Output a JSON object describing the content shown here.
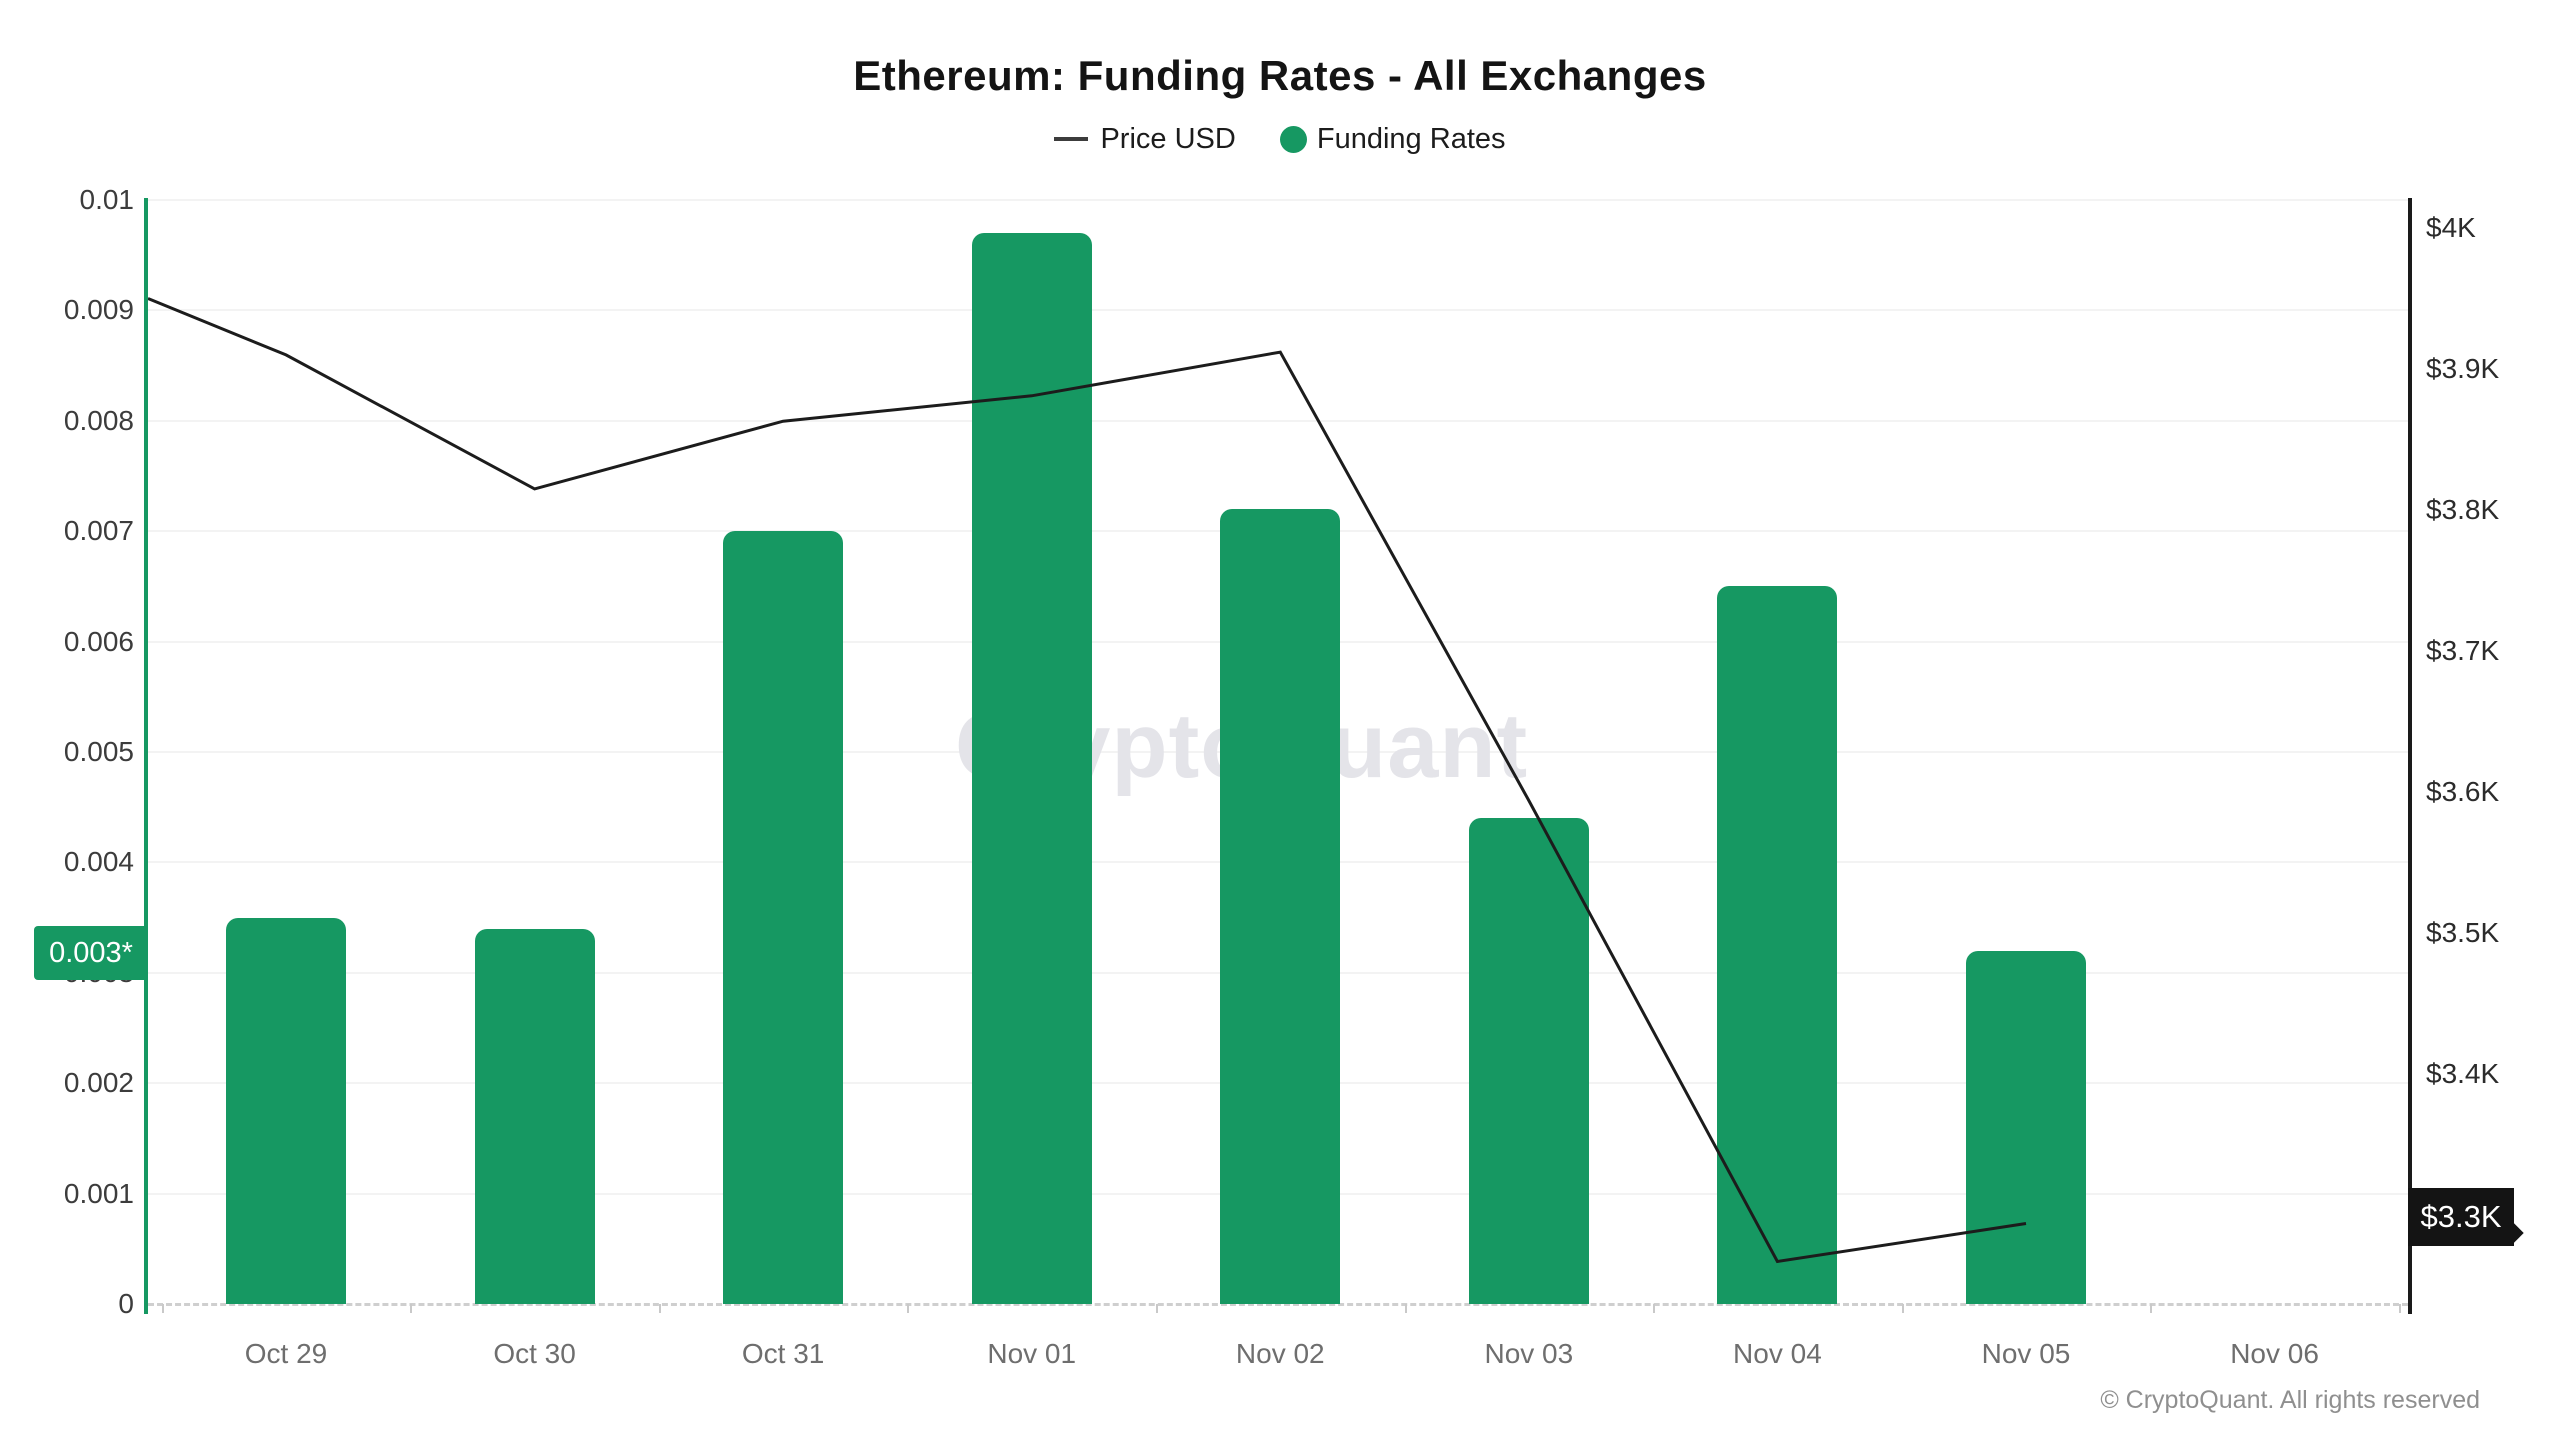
{
  "title": "Ethereum: Funding Rates - All Exchanges",
  "legend": {
    "price_label": "Price USD",
    "funding_label": "Funding Rates"
  },
  "watermark": "CryptoQuant",
  "copyright": "© CryptoQuant. All rights reserved",
  "colors": {
    "bar_green": "#169862",
    "line_black": "#1c1c1c",
    "left_badge_bg": "#169862",
    "right_badge_bg": "#141414",
    "gridline": "#f3f3f3",
    "axis_label_gray": "#6e6e6e"
  },
  "left_axis": {
    "badge_label": "0.003*",
    "ticks": [
      {
        "label": "0.01",
        "value": 0.01
      },
      {
        "label": "0.009",
        "value": 0.009
      },
      {
        "label": "0.008",
        "value": 0.008
      },
      {
        "label": "0.007",
        "value": 0.007
      },
      {
        "label": "0.006",
        "value": 0.006
      },
      {
        "label": "0.005",
        "value": 0.005
      },
      {
        "label": "0.004",
        "value": 0.004
      },
      {
        "label": "0.003",
        "value": 0.003
      },
      {
        "label": "0.002",
        "value": 0.002
      },
      {
        "label": "0.001",
        "value": 0.001
      },
      {
        "label": "0",
        "value": 0
      }
    ]
  },
  "right_axis": {
    "badge_label": "$3.3K",
    "ticks": [
      {
        "label": "$4K",
        "value": 4000
      },
      {
        "label": "$3.9K",
        "value": 3900
      },
      {
        "label": "$3.8K",
        "value": 3800
      },
      {
        "label": "$3.7K",
        "value": 3700
      },
      {
        "label": "$3.6K",
        "value": 3600
      },
      {
        "label": "$3.5K",
        "value": 3500
      },
      {
        "label": "$3.4K",
        "value": 3400
      },
      {
        "label": "$3.3K",
        "value": 3300
      }
    ]
  },
  "chart_data": {
    "type": "bar+line",
    "title": "Ethereum: Funding Rates - All Exchanges",
    "categories": [
      "Oct 29",
      "Oct 30",
      "Oct 31",
      "Nov 01",
      "Nov 02",
      "Nov 03",
      "Nov 04",
      "Nov 05",
      "Nov 06"
    ],
    "series": [
      {
        "name": "Funding Rates",
        "type": "bar",
        "axis": "left",
        "color": "#169862",
        "values": [
          0.0035,
          0.0034,
          0.007,
          0.0097,
          0.0072,
          0.0044,
          0.0065,
          0.0032,
          null
        ]
      },
      {
        "name": "Price USD",
        "type": "line",
        "axis": "right",
        "color": "#1c1c1c",
        "edge_start_value": 3950,
        "values": [
          3910,
          3815,
          3863,
          3881,
          3912,
          3594,
          3267,
          3294,
          null
        ]
      }
    ],
    "left_ylabel": "Funding Rate",
    "right_ylabel": "Price USD",
    "left_ylim": [
      0,
      0.01
    ],
    "right_axis_tick_values": [
      4000,
      3900,
      3800,
      3700,
      3600,
      3500,
      3400,
      3300
    ],
    "grid": true,
    "legend_position": "top-center",
    "annotations": {
      "left_axis_last_value_badge": "0.003*",
      "right_axis_last_value_badge": "$3.3K"
    }
  }
}
